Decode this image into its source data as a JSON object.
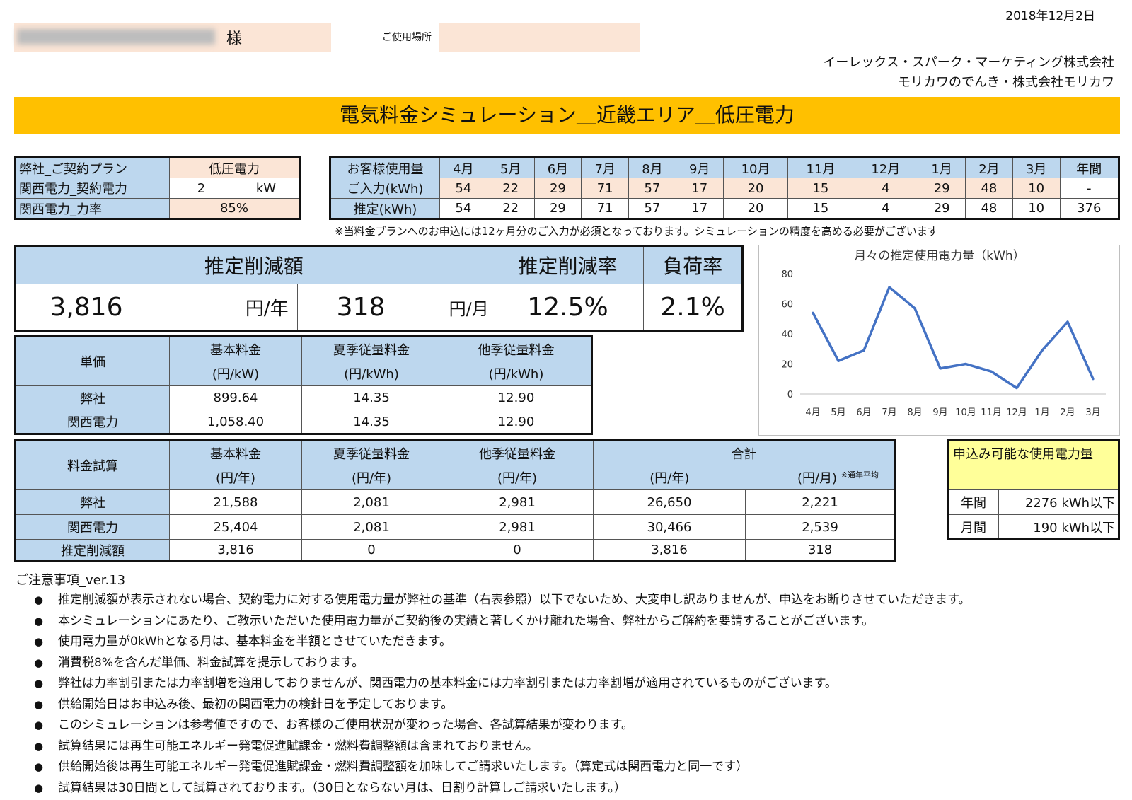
{
  "date": "2018年12月2日",
  "customer": {
    "suffix": "様",
    "name": "",
    "location_label": "ご使用場所",
    "location": ""
  },
  "company": [
    "イーレックス・スパーク・マーケティング株式会社",
    "モリカワのでんき・株式会社モリカワ"
  ],
  "title": "電気料金シミュレーション＿近畿エリア＿低圧電力",
  "contract": {
    "plan_label": "弊社_ご契約プラン",
    "plan_value": "低圧電力",
    "power_label": "関西電力_契約電力",
    "power_value": "2",
    "power_unit": "kW",
    "pf_label": "関西電力_力率",
    "pf_value": "85%"
  },
  "usage": {
    "header_label": "お客様使用量",
    "input_label": "ご入力(kWh)",
    "est_label": "推定(kWh)",
    "months": [
      "4月",
      "5月",
      "6月",
      "7月",
      "8月",
      "9月",
      "10月",
      "11月",
      "12月",
      "1月",
      "2月",
      "3月",
      "年間"
    ],
    "input": [
      "54",
      "22",
      "29",
      "71",
      "57",
      "17",
      "20",
      "15",
      "4",
      "29",
      "48",
      "10",
      "-"
    ],
    "estimate": [
      "54",
      "22",
      "29",
      "71",
      "57",
      "17",
      "20",
      "15",
      "4",
      "29",
      "48",
      "10",
      "376"
    ],
    "note": "※当料金プランへのお申込には12ヶ月分のご入力が必須となっております。シミュレーションの精度を高める必要がございます"
  },
  "summary": {
    "reduction_label": "推定削減額",
    "rate_label": "推定削減率",
    "load_label": "負荷率",
    "annual": "3,816",
    "annual_unit": "円/年",
    "monthly": "318",
    "monthly_unit": "円/月",
    "rate": "12.5%",
    "load": "2.1%"
  },
  "unit_price": {
    "label": "単価",
    "headers": [
      [
        "基本料金",
        "(円/kW)"
      ],
      [
        "夏季従量料金",
        "(円/kWh)"
      ],
      [
        "他季従量料金",
        "(円/kWh)"
      ]
    ],
    "rows": [
      {
        "name": "弊社",
        "values": [
          "899.64",
          "14.35",
          "12.90"
        ]
      },
      {
        "name": "関西電力",
        "values": [
          "1,058.40",
          "14.35",
          "12.90"
        ]
      }
    ]
  },
  "calc": {
    "label": "料金試算",
    "headers": [
      [
        "基本料金",
        "(円/年)"
      ],
      [
        "夏季従量料金",
        "(円/年)"
      ],
      [
        "他季従量料金",
        "(円/年)"
      ]
    ],
    "total_label": "合計",
    "total_year": "(円/年)",
    "total_month": "(円/月)",
    "total_note": "※通年平均",
    "rows": [
      {
        "name": "弊社",
        "values": [
          "21,588",
          "2,081",
          "2,981",
          "26,650",
          "2,221"
        ]
      },
      {
        "name": "関西電力",
        "values": [
          "25,404",
          "2,081",
          "2,981",
          "30,466",
          "2,539"
        ]
      },
      {
        "name": "推定削減額",
        "values": [
          "3,816",
          "0",
          "0",
          "3,816",
          "318"
        ]
      }
    ]
  },
  "available": {
    "title": "申込み可能な使用電力量",
    "rows": [
      {
        "label": "年間",
        "value": "2276 kWh以下"
      },
      {
        "label": "月間",
        "value": "190 kWh以下"
      }
    ]
  },
  "notes_title": "ご注意事項_ver.13",
  "notes": [
    "推定削減額が表示されない場合、契約電力に対する使用電力量が弊社の基準（右表参照）以下でないため、大変申し訳ありませんが、申込をお断りさせていただきます。",
    "本シミュレーションにあたり、ご教示いただいた使用電力量がご契約後の実績と著しくかけ離れた場合、弊社からご解約を要請することがございます。",
    "使用電力量が0kWhとなる月は、基本料金を半額とさせていただきます。",
    "消費税8%を含んだ単価、料金試算を提示しております。",
    "弊社は力率割引または力率割増を適用しておりませんが、関西電力の基本料金には力率割引または力率割増が適用されているものがございます。",
    "供給開始日はお申込み後、最初の関西電力の検針日を予定しております。",
    "このシミュレーションは参考値ですので、お客様のご使用状況が変わった場合、各試算結果が変わります。",
    "試算結果には再生可能エネルギー発電促進賦課金・燃料費調整額は含まれておりません。",
    "供給開始後は再生可能エネルギー発電促進賦課金・燃料費調整額を加味してご請求いたします。（算定式は関西電力と同一です）",
    "試算結果は30日間として試算されております。（30日とならない月は、日割り計算しご請求いたします。）"
  ],
  "chart_data": {
    "type": "line",
    "title": "月々の推定使用電力量（kWh）",
    "categories": [
      "4月",
      "5月",
      "6月",
      "7月",
      "8月",
      "9月",
      "10月",
      "11月",
      "12月",
      "1月",
      "2月",
      "3月"
    ],
    "series": [
      {
        "values": [
          54,
          22,
          29,
          71,
          57,
          17,
          20,
          15,
          4,
          29,
          48,
          10
        ]
      }
    ],
    "yticks": [
      0,
      20,
      40,
      60,
      80
    ],
    "ylim": [
      0,
      80
    ],
    "color": "#4472c4",
    "grid": false
  }
}
